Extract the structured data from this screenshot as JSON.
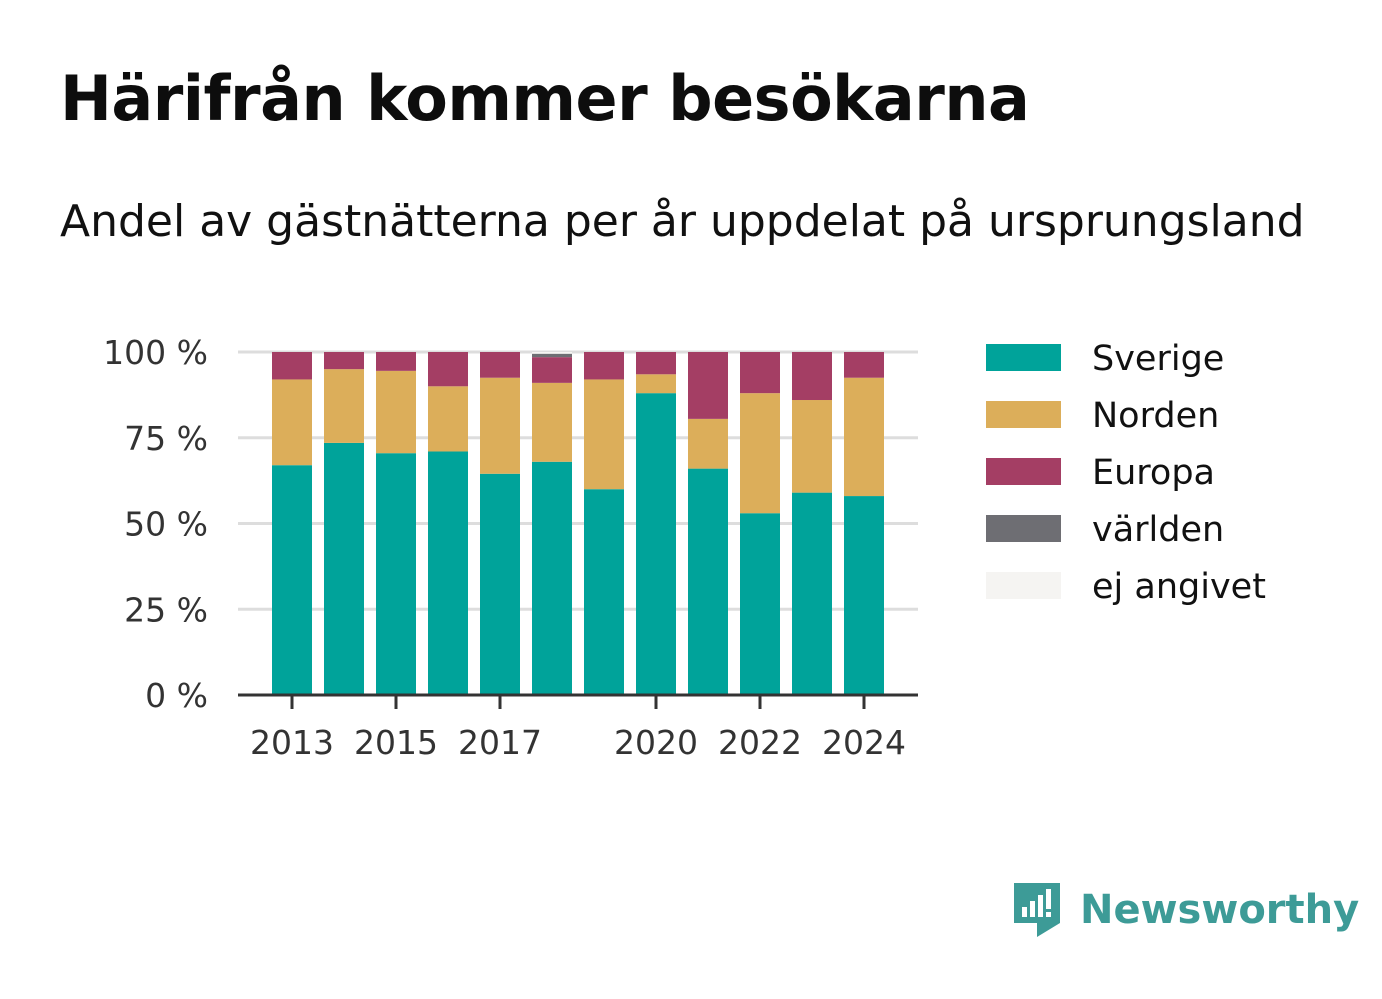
{
  "title": "Härifrån kommer besökarna",
  "subtitle": "Andel av gästnätterna per år uppdelat på ursprungsland",
  "brand": {
    "name": "Newsworthy",
    "icon": "newsworthy-logo-icon"
  },
  "colors": {
    "Sverige": "#00a39a",
    "Norden": "#dcae5a",
    "Europa": "#a43e64",
    "världen": "#6e6e73",
    "ej angivet": "#f5f4f2",
    "grid": "#dddddd",
    "axis": "#333333"
  },
  "chart_data": {
    "type": "bar",
    "stacked": true,
    "title": "",
    "xlabel": "",
    "ylabel": "",
    "ylim": [
      0,
      100
    ],
    "yticks": [
      0,
      25,
      50,
      75,
      100
    ],
    "ytick_labels": [
      "0 %",
      "25 %",
      "50 %",
      "75 %",
      "100 %"
    ],
    "xtick_labels": [
      "2013",
      "2015",
      "2017",
      "2020",
      "2022",
      "2024"
    ],
    "categories": [
      "2013",
      "2014",
      "2015",
      "2016",
      "2017",
      "2018",
      "2019",
      "2020",
      "2021",
      "2022",
      "2023",
      "2024"
    ],
    "grid": true,
    "legend": "right",
    "series": [
      {
        "name": "Sverige",
        "values": [
          67,
          73.5,
          70.5,
          71,
          64.5,
          68,
          60,
          88,
          66,
          53,
          59,
          58
        ]
      },
      {
        "name": "Norden",
        "values": [
          25,
          21.5,
          24,
          19,
          28,
          23,
          32,
          5.5,
          14.5,
          35,
          27,
          34.5
        ]
      },
      {
        "name": "Europa",
        "values": [
          8,
          5,
          5.5,
          10,
          7.5,
          7.5,
          8,
          6.5,
          19.5,
          12,
          14,
          7.5
        ]
      },
      {
        "name": "världen",
        "values": [
          0,
          0,
          0,
          0,
          0,
          1,
          0,
          0,
          0,
          0,
          0,
          0
        ]
      },
      {
        "name": "ej angivet",
        "values": [
          0,
          0,
          0,
          0,
          0,
          0.5,
          0,
          0,
          0,
          0,
          0,
          0
        ]
      }
    ]
  }
}
